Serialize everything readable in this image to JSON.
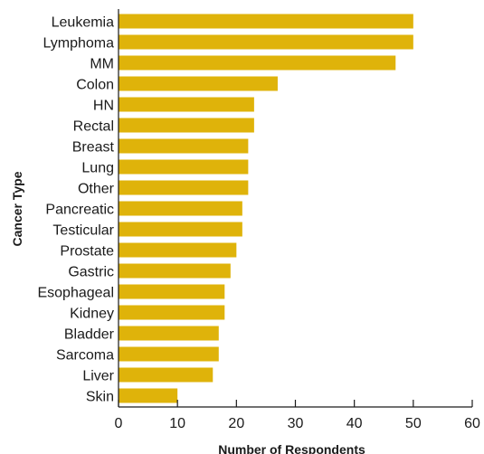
{
  "chart_data": {
    "type": "bar",
    "orientation": "horizontal",
    "categories": [
      "Leukemia",
      "Lymphoma",
      "MM",
      "Colon",
      "HN",
      "Rectal",
      "Breast",
      "Lung",
      "Other",
      "Pancreatic",
      "Testicular",
      "Prostate",
      "Gastric",
      "Esophageal",
      "Kidney",
      "Bladder",
      "Sarcoma",
      "Liver",
      "Skin"
    ],
    "values": [
      50,
      50,
      47,
      27,
      23,
      23,
      22,
      22,
      22,
      21,
      21,
      20,
      19,
      18,
      18,
      17,
      17,
      16,
      10
    ],
    "xlabel": "Number of Respondents",
    "ylabel": "Cancer Type",
    "xlim": [
      0,
      60
    ],
    "xticks": [
      "0",
      "10",
      "20",
      "30",
      "40",
      "50",
      "60"
    ],
    "grid": false,
    "bar_color": "#dfb30a"
  }
}
